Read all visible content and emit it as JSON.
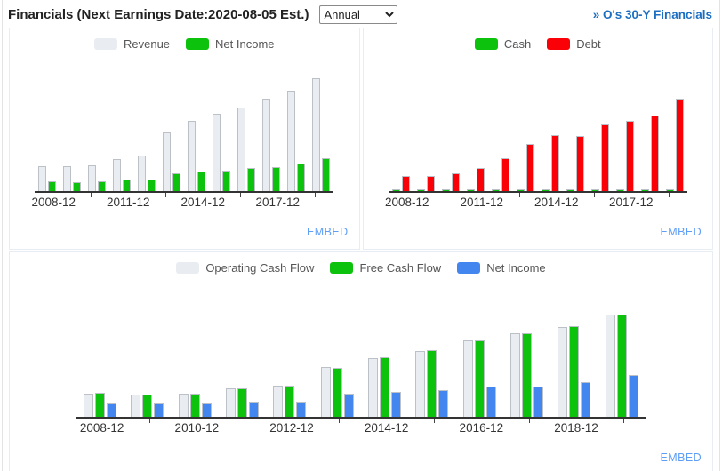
{
  "header": {
    "title": "Financials (Next Earnings Date:2020-08-05 Est.)",
    "period_select": {
      "value": "Annual",
      "options": [
        "Annual"
      ]
    },
    "link": "» O's 30-Y Financials"
  },
  "embed_label": "EMBED",
  "colors": {
    "link_blue": "#1b6ec2",
    "embed_blue": "#5e9ef7",
    "axis": "#333333",
    "gray_bar": "#e9edf2",
    "green_bar": "#0cc20c",
    "red_bar": "#fa0107",
    "blue_bar": "#4486f0"
  },
  "chart_data": [
    {
      "type": "bar",
      "name": "revenue-net-income",
      "categories": [
        "2008-12",
        "2009-12",
        "2010-12",
        "2011-12",
        "2012-12",
        "2013-12",
        "2014-12",
        "2015-12",
        "2016-12",
        "2017-12",
        "2018-12",
        "2019-12"
      ],
      "series": [
        {
          "name": "Revenue",
          "color": "#e9edf2",
          "values": [
            330,
            327,
            345,
            420,
            475,
            778,
            934,
            1023,
            1103,
            1221,
            1335,
            1491
          ]
        },
        {
          "name": "Net Income",
          "color": "#0cc20c",
          "values": [
            128,
            122,
            128,
            150,
            150,
            235,
            262,
            275,
            305,
            315,
            362,
            433
          ]
        }
      ],
      "x_tick_labels": [
        "2008-12",
        "2011-12",
        "2014-12",
        "2017-12"
      ],
      "label_every": 3,
      "ylim": [
        0,
        1530
      ],
      "grid": false,
      "legend_position": "top"
    },
    {
      "type": "bar",
      "name": "cash-debt",
      "categories": [
        "2008-12",
        "2009-12",
        "2010-12",
        "2011-12",
        "2012-12",
        "2013-12",
        "2014-12",
        "2015-12",
        "2016-12",
        "2017-12",
        "2018-12",
        "2019-12"
      ],
      "series": [
        {
          "name": "Cash",
          "color": "#0cc20c",
          "values": [
            46,
            35,
            67,
            50,
            109,
            70,
            60,
            70,
            190,
            120,
            160,
            54
          ]
        },
        {
          "name": "Debt",
          "color": "#fa0107",
          "values": [
            1390,
            1330,
            1600,
            2050,
            2925,
            4230,
            5055,
            4950,
            6010,
            6280,
            6760,
            8300
          ]
        }
      ],
      "x_tick_labels": [
        "2008-12",
        "2011-12",
        "2014-12",
        "2017-12"
      ],
      "label_every": 3,
      "ylim": [
        0,
        10400
      ],
      "grid": false,
      "legend_position": "top"
    },
    {
      "type": "bar",
      "name": "cash-flow-net-income",
      "categories": [
        "2008-12",
        "2009-12",
        "2010-12",
        "2011-12",
        "2012-12",
        "2013-12",
        "2014-12",
        "2015-12",
        "2016-12",
        "2017-12",
        "2018-12",
        "2019-12"
      ],
      "series": [
        {
          "name": "Operating Cash Flow",
          "color": "#e9edf2",
          "values": [
            247,
            235,
            247,
            300,
            327,
            522,
            617,
            692,
            800,
            874,
            945,
            1068
          ]
        },
        {
          "name": "Free Cash Flow",
          "color": "#0cc20c",
          "values": [
            250,
            232,
            240,
            302,
            330,
            515,
            627,
            695,
            800,
            878,
            948,
            1070
          ]
        },
        {
          "name": "Net Income",
          "color": "#4486f0",
          "values": [
            139,
            139,
            136,
            155,
            158,
            240,
            265,
            280,
            315,
            320,
            365,
            435
          ]
        }
      ],
      "x_tick_labels": [
        "2008-12",
        "2010-12",
        "2012-12",
        "2014-12",
        "2016-12",
        "2018-12"
      ],
      "label_every": 2,
      "ylim": [
        0,
        1100
      ],
      "grid": false,
      "legend_position": "top"
    }
  ]
}
